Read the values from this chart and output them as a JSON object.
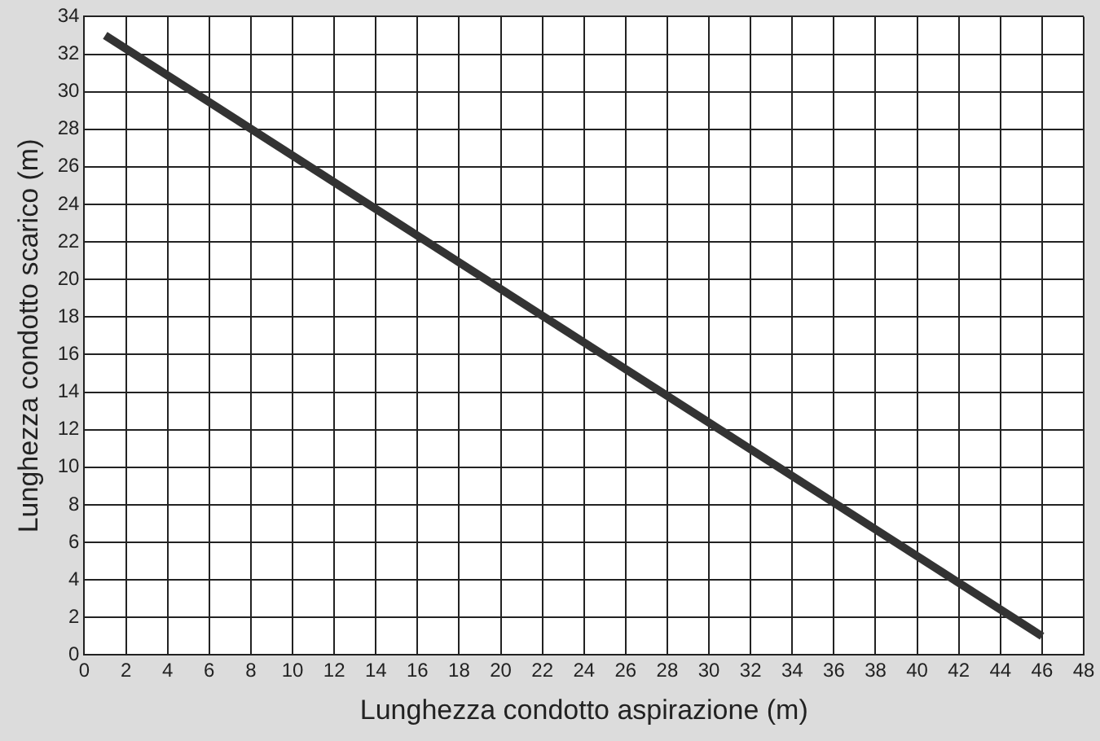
{
  "chart_data": {
    "type": "line",
    "xlabel": "Lunghezza condotto aspirazione (m)",
    "ylabel": "Lunghezza condotto scarico (m)",
    "x": [
      1,
      46
    ],
    "series": [
      {
        "color": "#333333",
        "values": [
          33,
          1
        ]
      }
    ],
    "xlim": [
      0,
      48
    ],
    "xticks": [
      0,
      2,
      4,
      6,
      8,
      10,
      12,
      14,
      16,
      18,
      20,
      22,
      24,
      26,
      28,
      30,
      32,
      34,
      36,
      38,
      40,
      42,
      44,
      46,
      48
    ],
    "ylim": [
      0,
      34
    ],
    "yticks": [
      0,
      2,
      4,
      6,
      8,
      10,
      12,
      14,
      16,
      18,
      20,
      22,
      24,
      26,
      28,
      30,
      32,
      34
    ],
    "grid": true,
    "legend": false,
    "marker": "none",
    "line_style": "solid"
  }
}
